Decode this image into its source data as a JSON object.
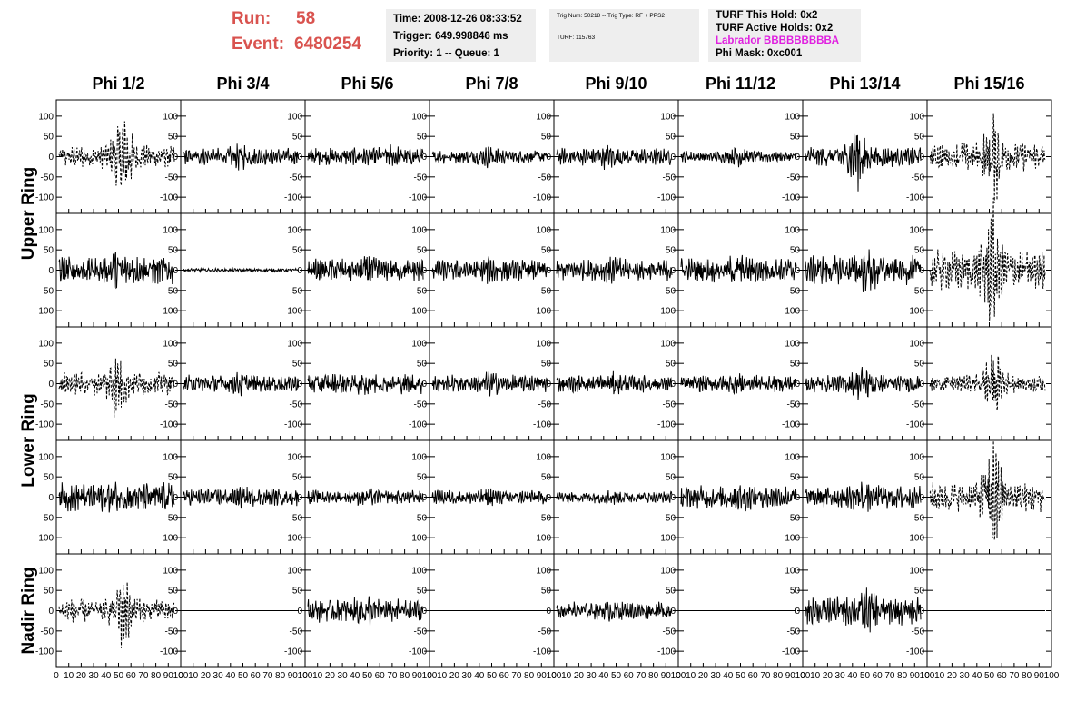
{
  "header": {
    "run_label": "Run:",
    "run": "58",
    "event_label": "Event:",
    "event": "6480254"
  },
  "info_boxes": [
    [
      "Time: 2008-12-26 08:33:52",
      "Trigger: 649.998846 ms",
      "Priority: 1 -- Queue: 1"
    ],
    [
      "Trig Num: 50218 -- Trig Type: RF + PPS2",
      "TURF: 115763"
    ],
    [
      "TURF This Hold: 0x2",
      "TURF Active Holds: 0x2",
      "Labrador BBBBBBBBBA",
      "Phi Mask: 0xc001"
    ]
  ],
  "columns": [
    "Phi 1/2",
    "Phi 3/4",
    "Phi 5/6",
    "Phi 7/8",
    "Phi 9/10",
    "Phi 11/12",
    "Phi 13/14",
    "Phi 15/16"
  ],
  "rows": [
    "Upper Ring",
    "Lower Ring",
    "Nadir Ring"
  ],
  "axes": {
    "ylim": [
      -140,
      140
    ],
    "yticks": [
      -100,
      -50,
      0,
      50,
      100
    ],
    "xlim": [
      0,
      100
    ],
    "xticks": [
      0,
      10,
      20,
      30,
      40,
      50,
      60,
      70,
      80,
      90,
      100
    ]
  }
}
